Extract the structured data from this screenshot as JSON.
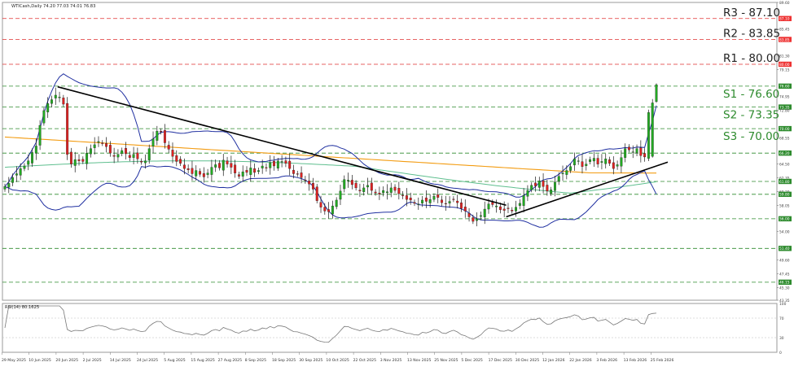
{
  "header": {
    "symbol_line": "WTICash,Daily  74.20 77.03 74.01 76.83"
  },
  "rsi_header": "RSI(14) 80.1625",
  "chart_data": {
    "type": "candlestick",
    "price_axis": {
      "range": [
        43.35,
        89.6
      ],
      "ticks": [
        89.6,
        87.1,
        85.45,
        83.85,
        81.3,
        80.0,
        79.15,
        76.6,
        74.95,
        73.35,
        72.8,
        70.0,
        68.55,
        66.2,
        64.5,
        62.35,
        61.8,
        60.2,
        59.8,
        58.05,
        56.0,
        54.0,
        51.4,
        49.6,
        47.45,
        46.15,
        45.3,
        43.35
      ],
      "tick_labels": [
        "89.60",
        "87.10",
        "85.45",
        "83.85",
        "81.30",
        "80.00",
        "79.15",
        "76.60",
        "74.95",
        "73.35",
        "72.80",
        "70.00",
        "68.55",
        "66.20",
        "64.50",
        "62.35",
        "61.80",
        "60.20",
        "59.80",
        "58.05",
        "56.00",
        "54.00",
        "51.40",
        "49.60",
        "47.45",
        "46.15",
        "45.30",
        "43.35"
      ],
      "highlighted_labels": [
        {
          "value": 87.1,
          "text": "87.10",
          "color": "#ee3333"
        },
        {
          "value": 83.85,
          "text": "83.85",
          "color": "#ee3333"
        },
        {
          "value": 80.0,
          "text": "80.00",
          "color": "#ee3333"
        },
        {
          "value": 76.6,
          "text": "76.60",
          "color": "#2e8b2e"
        },
        {
          "value": 73.35,
          "text": "73.35",
          "color": "#2e8b2e"
        },
        {
          "value": 70.0,
          "text": "70.00",
          "color": "#2e8b2e"
        },
        {
          "value": 66.2,
          "text": "66.20",
          "color": "#2e8b2e"
        },
        {
          "value": 61.8,
          "text": "61.80",
          "color": "#2e8b2e"
        },
        {
          "value": 59.8,
          "text": "59.80",
          "color": "#2e8b2e"
        },
        {
          "value": 56.0,
          "text": "56.00",
          "color": "#2e8b2e"
        },
        {
          "value": 51.4,
          "text": "51.40",
          "color": "#2e8b2e"
        },
        {
          "value": 46.15,
          "text": "46.15",
          "color": "#2e8b2e"
        }
      ]
    },
    "levels": [
      {
        "label": "R3 - 87.10",
        "value": 87.1,
        "kind": "resistance",
        "color": "#e03030"
      },
      {
        "label": "R2 - 83.85",
        "value": 83.85,
        "kind": "resistance",
        "color": "#e03030"
      },
      {
        "label": "R1 - 80.00",
        "value": 80.0,
        "kind": "resistance",
        "color": "#e03030"
      },
      {
        "label": "S1 - 76.60",
        "value": 76.6,
        "kind": "support",
        "color": "#2e8b2e"
      },
      {
        "label": "S2 - 73.35",
        "value": 73.35,
        "kind": "support",
        "color": "#2e8b2e"
      },
      {
        "label": "S3 - 70.00",
        "value": 70.0,
        "kind": "support",
        "color": "#2e8b2e"
      },
      {
        "label": "",
        "value": 66.2,
        "kind": "support",
        "color": "#2e8b2e"
      },
      {
        "label": "",
        "value": 61.8,
        "kind": "support",
        "color": "#2e8b2e"
      },
      {
        "label": "",
        "value": 59.8,
        "kind": "support",
        "color": "#2e8b2e"
      },
      {
        "label": "",
        "value": 56.0,
        "kind": "support",
        "color": "#2e8b2e"
      },
      {
        "label": "",
        "value": 51.4,
        "kind": "support",
        "color": "#2e8b2e"
      },
      {
        "label": "",
        "value": 46.15,
        "kind": "support",
        "color": "#2e8b2e"
      }
    ],
    "x_axis_labels": [
      "29 May 2025",
      "10 Jun 2025",
      "20 Jun 2025",
      "2 Jul 2025",
      "14 Jul 2025",
      "24 Jul 2025",
      "5 Aug 2025",
      "15 Aug 2025",
      "27 Aug 2025",
      "8 Sep 2025",
      "18 Sep 2025",
      "30 Sep 2025",
      "10 Oct 2025",
      "22 Oct 2025",
      "3 Nov 2025",
      "13 Nov 2025",
      "25 Nov 2025",
      "5 Dec 2025",
      "17 Dec 2025",
      "30 Dec 2025",
      "12 Jan 2026",
      "22 Jan 2026",
      "3 Feb 2026",
      "13 Feb 2026",
      "25 Feb 2026"
    ],
    "closes": [
      61.0,
      61.5,
      62.4,
      63.0,
      63.8,
      64.2,
      65.0,
      66.3,
      67.3,
      70.5,
      72.8,
      73.9,
      74.5,
      75.2,
      74.9,
      73.8,
      66.0,
      64.5,
      65.2,
      65.0,
      64.9,
      66.2,
      66.9,
      67.5,
      68.0,
      67.7,
      67.2,
      66.2,
      65.7,
      66.0,
      66.6,
      66.1,
      65.5,
      66.0,
      65.3,
      64.8,
      65.0,
      66.9,
      68.4,
      69.6,
      69.5,
      67.8,
      66.8,
      65.7,
      64.9,
      64.6,
      63.8,
      63.6,
      63.0,
      63.5,
      62.9,
      62.5,
      63.1,
      64.0,
      64.4,
      63.9,
      65.1,
      64.5,
      64.0,
      63.1,
      62.6,
      63.3,
      63.2,
      63.9,
      63.2,
      63.5,
      64.2,
      63.9,
      64.7,
      64.2,
      65.0,
      64.9,
      64.6,
      63.8,
      63.0,
      62.9,
      62.4,
      62.0,
      61.4,
      60.6,
      58.8,
      57.8,
      57.2,
      57.1,
      58.0,
      58.9,
      60.3,
      62.1,
      62.0,
      61.3,
      60.8,
      60.3,
      60.8,
      61.2,
      60.4,
      60.0,
      59.8,
      60.4,
      60.2,
      60.8,
      60.4,
      59.9,
      59.6,
      59.0,
      58.9,
      58.4,
      58.3,
      58.9,
      58.7,
      59.0,
      59.5,
      59.3,
      58.5,
      58.3,
      58.7,
      59.0,
      58.5,
      57.6,
      57.2,
      56.3,
      55.6,
      56.0,
      56.5,
      57.5,
      58.3,
      58.2,
      58.0,
      57.4,
      57.3,
      57.6,
      57.2,
      57.8,
      58.4,
      59.6,
      60.4,
      61.2,
      61.1,
      61.9,
      61.0,
      60.3,
      60.5,
      61.7,
      62.6,
      63.1,
      63.5,
      64.1,
      65.3,
      65.0,
      64.1,
      64.5,
      65.2,
      65.4,
      64.5,
      64.9,
      65.3,
      64.6,
      63.8,
      64.4,
      65.5,
      66.9,
      66.7,
      66.4,
      66.9,
      65.8,
      65.6,
      72.5,
      74.0,
      76.83
    ],
    "indicators": {
      "moving_averages": [
        {
          "name": "MA200",
          "color": "#f39c12"
        },
        {
          "name": "MA100",
          "color": "#5fbf8f"
        },
        {
          "name": "Bollinger",
          "color": "#1f2fa0"
        }
      ],
      "trendlines": [
        {
          "from_date": "20 Jun 2025",
          "from_price": 76.5,
          "to_date": "30 Dec 2025",
          "to_price": 58.1,
          "color": "#000000"
        },
        {
          "from_date": "30 Dec 2025",
          "from_price": 56.3,
          "to_date": "25 Feb 2026",
          "to_price": 64.8,
          "color": "#000000"
        }
      ]
    },
    "rsi": {
      "period": 14,
      "last_value": 80.1625,
      "range": [
        0,
        100
      ],
      "levels": [
        70,
        30
      ],
      "tick_labels": [
        "100",
        "70",
        "30",
        "0"
      ],
      "color": "#777777"
    }
  }
}
